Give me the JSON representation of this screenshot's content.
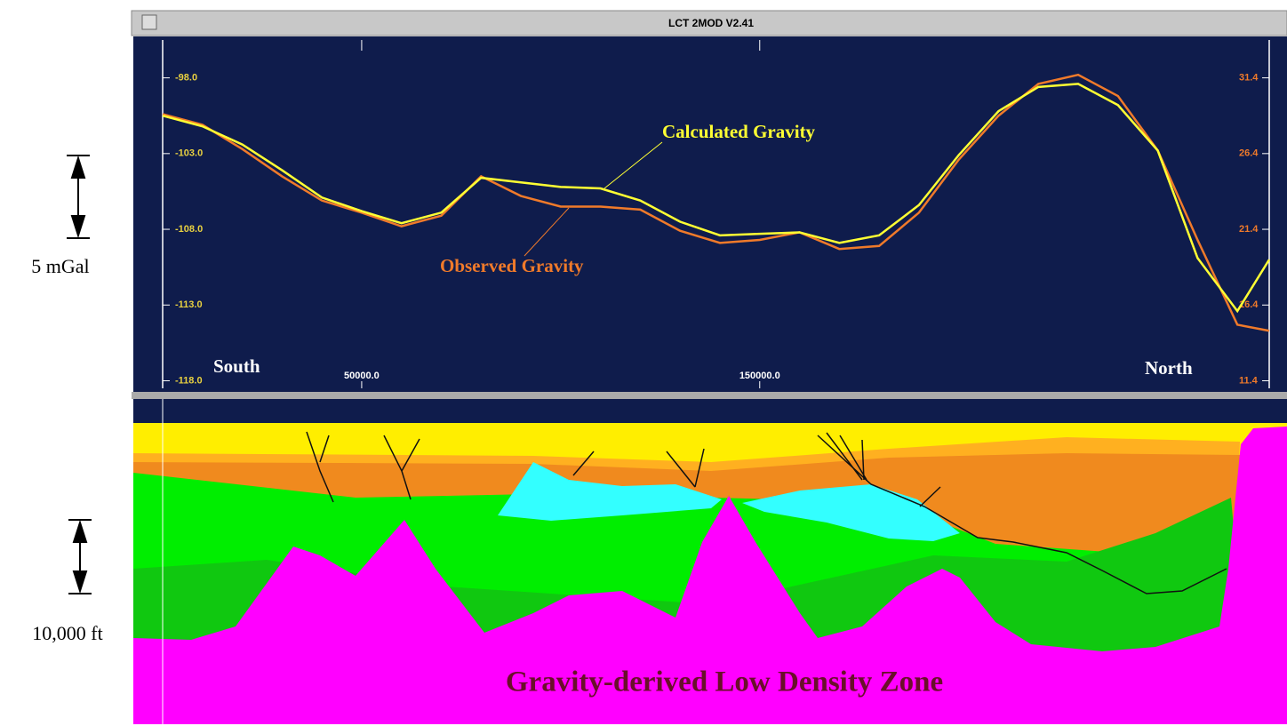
{
  "window": {
    "title": "LCT 2MOD V2.41"
  },
  "side_labels": {
    "gravity_scale": "5 mGal",
    "depth_scale": "10,000 ft"
  },
  "section_label": "Gravity-derived Low Density Zone",
  "chart_data": {
    "type": "line",
    "x": [
      0,
      10000,
      20000,
      30000,
      40000,
      50000,
      60000,
      70000,
      80000,
      90000,
      100000,
      110000,
      120000,
      130000,
      140000,
      150000,
      160000,
      170000,
      180000,
      190000,
      200000,
      210000,
      220000,
      230000,
      240000,
      250000,
      260000,
      270000,
      278000
    ],
    "series": [
      {
        "name": "Calculated Gravity",
        "color": "#ffff33",
        "values": [
          -100.5,
          -101.2,
          -102.4,
          -104.1,
          -105.9,
          -106.8,
          -107.6,
          -106.9,
          -104.6,
          -104.9,
          -105.2,
          -105.3,
          -106.1,
          -107.5,
          -108.4,
          -108.3,
          -108.2,
          -108.9,
          -108.4,
          -106.4,
          -103.1,
          -100.2,
          -98.6,
          -98.4,
          -99.8,
          -102.8,
          -109.9,
          -113.4,
          -110.0
        ]
      },
      {
        "name": "Observed Gravity",
        "color": "#f07a2a",
        "values": [
          -100.4,
          -101.1,
          -102.7,
          -104.5,
          -106.1,
          -106.9,
          -107.8,
          -107.1,
          -104.5,
          -105.8,
          -106.5,
          -106.5,
          -106.7,
          -108.1,
          -108.9,
          -108.7,
          -108.2,
          -109.3,
          -109.1,
          -106.9,
          -103.4,
          -100.5,
          -98.4,
          -97.8,
          -99.2,
          -102.8,
          -108.7,
          -114.3,
          -114.7
        ]
      }
    ],
    "xlim": [
      0,
      278000
    ],
    "xticks": [
      {
        "value": 50000,
        "label": "50000.0"
      },
      {
        "value": 150000,
        "label": "150000.0"
      }
    ],
    "ylim": [
      -118.5,
      -95.5
    ],
    "yticks": [
      {
        "value": -98,
        "label": "-98.0"
      },
      {
        "value": -103,
        "label": "-103.0"
      },
      {
        "value": -108,
        "label": "-108.0"
      },
      {
        "value": -113,
        "label": "-113.0"
      },
      {
        "value": -118,
        "label": "-118.0"
      }
    ],
    "y2lim": [
      10.9,
      33.9
    ],
    "y2ticks": [
      31.4,
      26.4,
      21.4,
      16.4,
      11.4
    ],
    "y2color": "#f07a2a",
    "ycolor": "#e8d040",
    "ends": {
      "left": "South",
      "right": "North"
    }
  }
}
